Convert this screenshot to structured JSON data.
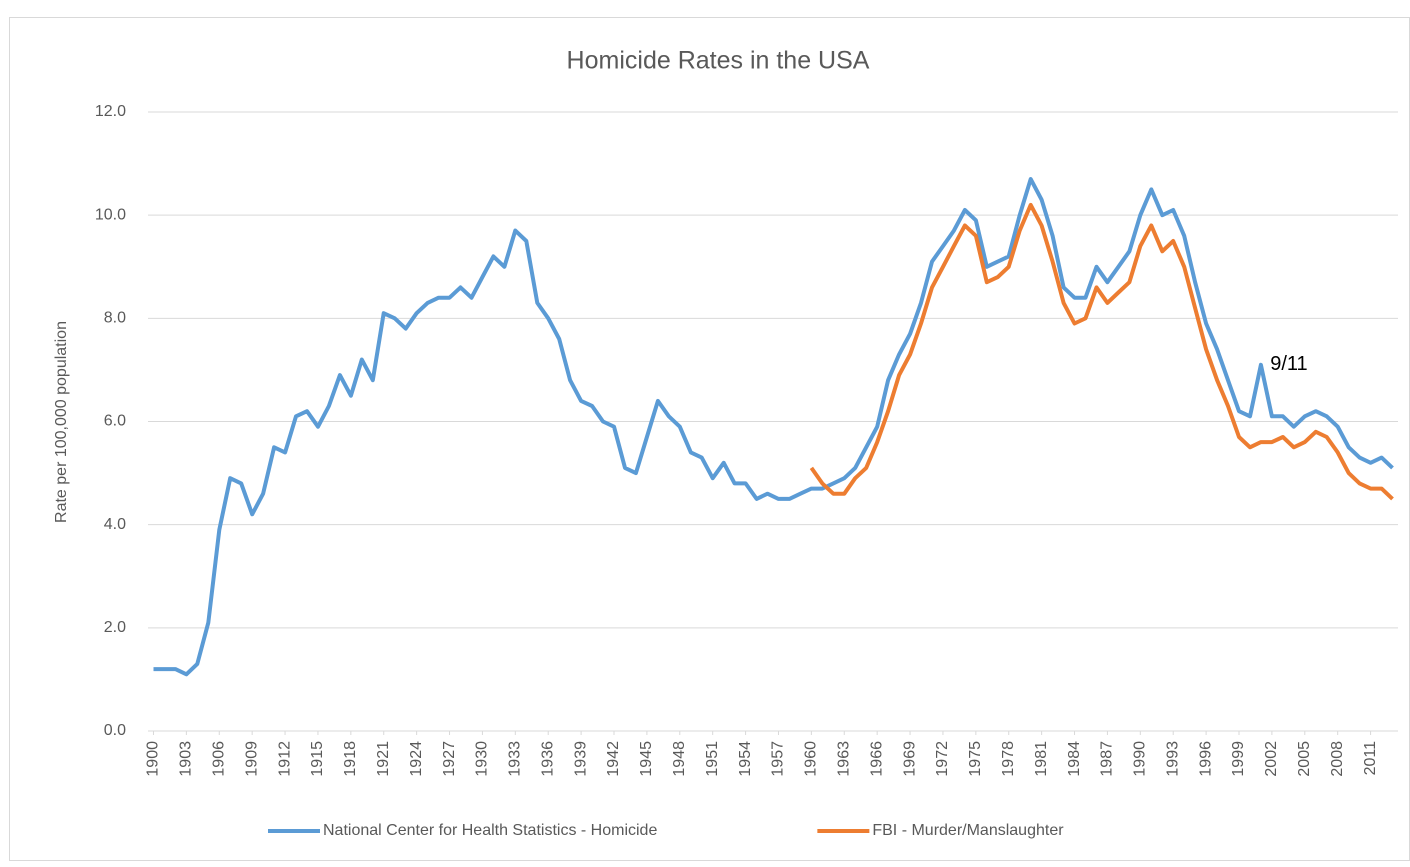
{
  "chart_data": {
    "type": "line",
    "title": "Homicide Rates in the USA",
    "y_label": "Rate per 100,000 population",
    "x": [
      1900,
      1901,
      1902,
      1903,
      1904,
      1905,
      1906,
      1907,
      1908,
      1909,
      1910,
      1911,
      1912,
      1913,
      1914,
      1915,
      1916,
      1917,
      1918,
      1919,
      1920,
      1921,
      1922,
      1923,
      1924,
      1925,
      1926,
      1927,
      1928,
      1929,
      1930,
      1931,
      1932,
      1933,
      1934,
      1935,
      1936,
      1937,
      1938,
      1939,
      1940,
      1941,
      1942,
      1943,
      1944,
      1945,
      1946,
      1947,
      1948,
      1949,
      1950,
      1951,
      1952,
      1953,
      1954,
      1955,
      1956,
      1957,
      1958,
      1959,
      1960,
      1961,
      1962,
      1963,
      1964,
      1965,
      1966,
      1967,
      1968,
      1969,
      1970,
      1971,
      1972,
      1973,
      1974,
      1975,
      1976,
      1977,
      1978,
      1979,
      1980,
      1981,
      1982,
      1983,
      1984,
      1985,
      1986,
      1987,
      1988,
      1989,
      1990,
      1991,
      1992,
      1993,
      1994,
      1995,
      1996,
      1997,
      1998,
      1999,
      2000,
      2001,
      2002,
      2003,
      2004,
      2005,
      2006,
      2007,
      2008,
      2009,
      2010,
      2011,
      2012,
      2013
    ],
    "series": [
      {
        "name": "National Center for Health Statistics - Homicide",
        "color": "#5b9bd5",
        "values": [
          1.2,
          1.2,
          1.2,
          1.1,
          1.3,
          2.1,
          3.9,
          4.9,
          4.8,
          4.2,
          4.6,
          5.5,
          5.4,
          6.1,
          6.2,
          5.9,
          6.3,
          6.9,
          6.5,
          7.2,
          6.8,
          8.1,
          8.0,
          7.8,
          8.1,
          8.3,
          8.4,
          8.4,
          8.6,
          8.4,
          8.8,
          9.2,
          9.0,
          9.7,
          9.5,
          8.3,
          8.0,
          7.6,
          6.8,
          6.4,
          6.3,
          6.0,
          5.9,
          5.1,
          5.0,
          5.7,
          6.4,
          6.1,
          5.9,
          5.4,
          5.3,
          4.9,
          5.2,
          4.8,
          4.8,
          4.5,
          4.6,
          4.5,
          4.5,
          4.6,
          4.7,
          4.7,
          4.8,
          4.9,
          5.1,
          5.5,
          5.9,
          6.8,
          7.3,
          7.7,
          8.3,
          9.1,
          9.4,
          9.7,
          10.1,
          9.9,
          9.0,
          9.1,
          9.2,
          10.0,
          10.7,
          10.3,
          9.6,
          8.6,
          8.4,
          8.4,
          9.0,
          8.7,
          9.0,
          9.3,
          10.0,
          10.5,
          10.0,
          10.1,
          9.6,
          8.7,
          7.9,
          7.4,
          6.8,
          6.2,
          6.1,
          7.1,
          6.1,
          6.1,
          5.9,
          6.1,
          6.2,
          6.1,
          5.9,
          5.5,
          5.3,
          5.2,
          5.3,
          5.1
        ]
      },
      {
        "name": "FBI - Murder/Manslaughter",
        "color": "#ed7d31",
        "values": [
          null,
          null,
          null,
          null,
          null,
          null,
          null,
          null,
          null,
          null,
          null,
          null,
          null,
          null,
          null,
          null,
          null,
          null,
          null,
          null,
          null,
          null,
          null,
          null,
          null,
          null,
          null,
          null,
          null,
          null,
          null,
          null,
          null,
          null,
          null,
          null,
          null,
          null,
          null,
          null,
          null,
          null,
          null,
          null,
          null,
          null,
          null,
          null,
          null,
          null,
          null,
          null,
          null,
          null,
          null,
          null,
          null,
          null,
          null,
          null,
          5.1,
          4.8,
          4.6,
          4.6,
          4.9,
          5.1,
          5.6,
          6.2,
          6.9,
          7.3,
          7.9,
          8.6,
          9.0,
          9.4,
          9.8,
          9.6,
          8.7,
          8.8,
          9.0,
          9.7,
          10.2,
          9.8,
          9.1,
          8.3,
          7.9,
          8.0,
          8.6,
          8.3,
          8.5,
          8.7,
          9.4,
          9.8,
          9.3,
          9.5,
          9.0,
          8.2,
          7.4,
          6.8,
          6.3,
          5.7,
          5.5,
          5.6,
          5.6,
          5.7,
          5.5,
          5.6,
          5.8,
          5.7,
          5.4,
          5.0,
          4.8,
          4.7,
          4.7,
          4.5
        ]
      }
    ],
    "xlim": [
      1899.5,
      2013.5
    ],
    "xticks": [
      1900,
      1903,
      1906,
      1909,
      1912,
      1915,
      1918,
      1921,
      1924,
      1927,
      1930,
      1933,
      1936,
      1939,
      1942,
      1945,
      1948,
      1951,
      1954,
      1957,
      1960,
      1963,
      1966,
      1969,
      1972,
      1975,
      1978,
      1981,
      1984,
      1987,
      1990,
      1993,
      1996,
      1999,
      2002,
      2005,
      2008,
      2011
    ],
    "ylim": [
      0,
      12
    ],
    "yticks": [
      {
        "value": 0,
        "label": "0.0"
      },
      {
        "value": 2,
        "label": "2.0"
      },
      {
        "value": 4,
        "label": "4.0"
      },
      {
        "value": 6,
        "label": "6.0"
      },
      {
        "value": 8,
        "label": "8.0"
      },
      {
        "value": 10,
        "label": "10.0"
      },
      {
        "value": 12,
        "label": "12.0"
      }
    ],
    "grid": true,
    "legend": "bottom",
    "annotations": [
      {
        "text": "9/11",
        "x": 2001,
        "y": 7.1
      }
    ]
  }
}
